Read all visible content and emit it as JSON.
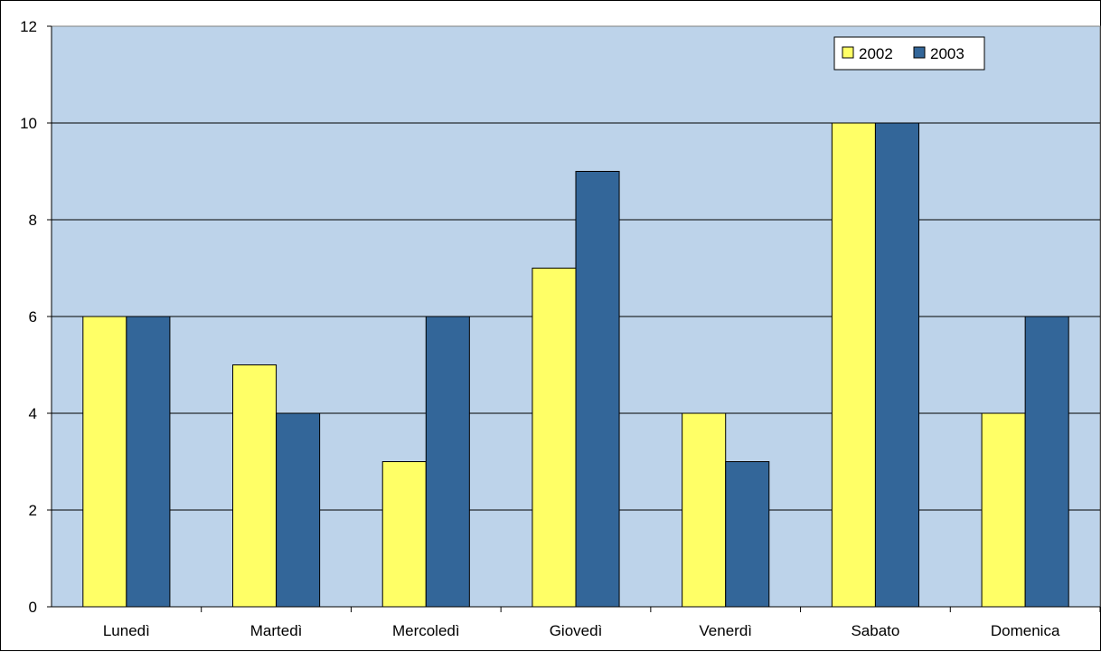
{
  "chart_data": {
    "type": "bar",
    "categories": [
      "Lunedì",
      "Martedì",
      "Mercoledì",
      "Giovedì",
      "Venerdì",
      "Sabato",
      "Domenica"
    ],
    "series": [
      {
        "name": "2002",
        "color": "#FFFF66",
        "values": [
          6,
          5,
          3,
          7,
          4,
          10,
          4
        ]
      },
      {
        "name": "2003",
        "color": "#336699",
        "values": [
          6,
          4,
          6,
          9,
          3,
          10,
          6
        ]
      }
    ],
    "title": "",
    "xlabel": "",
    "ylabel": "",
    "ylim": [
      0,
      12
    ],
    "yticks": [
      "0",
      "2",
      "4",
      "6",
      "8",
      "10",
      "12"
    ],
    "grid": true,
    "legend": "top-right",
    "plot_background": "#BDD3EA"
  }
}
